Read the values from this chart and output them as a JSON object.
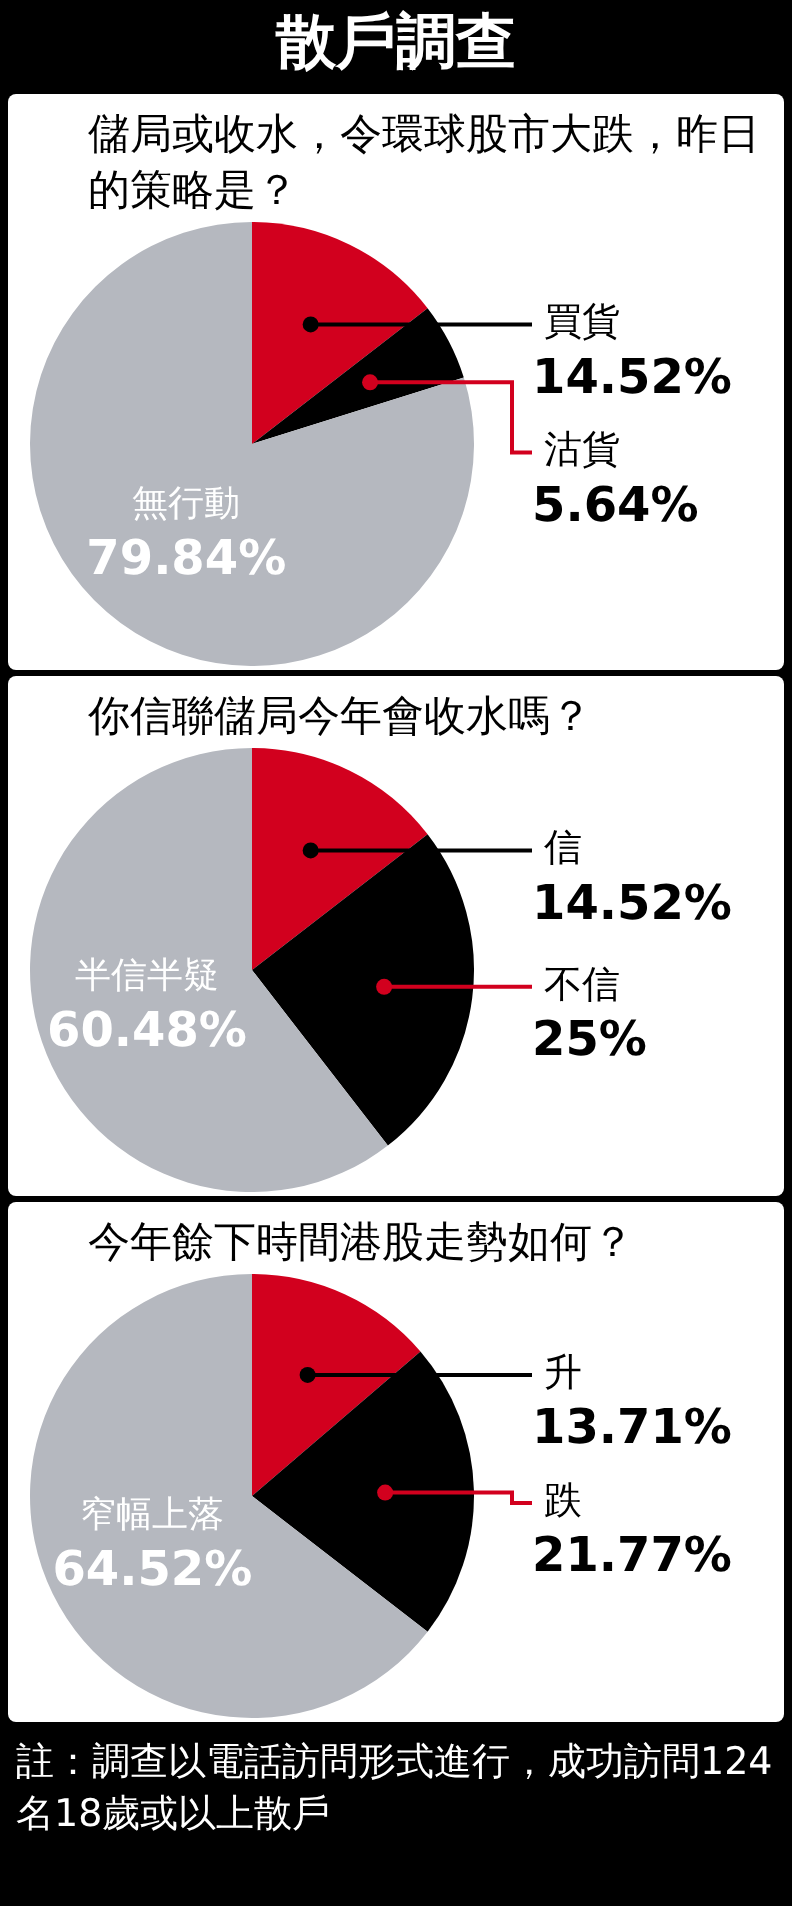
{
  "chart_data": [
    {
      "type": "pie",
      "title": "散戶調查",
      "subtitle": "儲局或收水，令環球股市大跌，昨日的策略是？",
      "categories": [
        "買貨",
        "沽貨",
        "無行動"
      ],
      "values": [
        14.52,
        5.64,
        79.84
      ],
      "colors": [
        "#d2001e",
        "#000000",
        "#b5b8bf"
      ],
      "value_labels": [
        "14.52%",
        "5.64%",
        "79.84%"
      ]
    },
    {
      "type": "pie",
      "subtitle": "你信聯儲局今年會收水嗎？",
      "categories": [
        "信",
        "不信",
        "半信半疑"
      ],
      "values": [
        14.52,
        25,
        60.48
      ],
      "colors": [
        "#d2001e",
        "#000000",
        "#b5b8bf"
      ],
      "value_labels": [
        "14.52%",
        "25%",
        "60.48%"
      ]
    },
    {
      "type": "pie",
      "subtitle": "今年餘下時間港股走勢如何？",
      "categories": [
        "升",
        "跌",
        "窄幅上落"
      ],
      "values": [
        13.71,
        21.77,
        64.52
      ],
      "colors": [
        "#d2001e",
        "#000000",
        "#b5b8bf"
      ],
      "value_labels": [
        "13.71%",
        "21.77%",
        "64.52%"
      ],
      "annotations": [
        "註：調查以電話訪問形式進行，成功訪問124名18歲或以上散戶"
      ]
    }
  ]
}
